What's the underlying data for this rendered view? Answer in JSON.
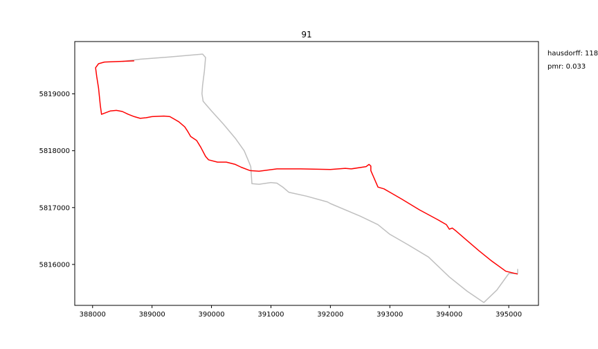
{
  "chart_data": {
    "type": "line",
    "title": "91",
    "xlabel": "",
    "ylabel": "",
    "xlim": [
      387700,
      395500
    ],
    "ylim": [
      5815280,
      5819920
    ],
    "x_ticks": [
      388000,
      389000,
      390000,
      391000,
      392000,
      393000,
      394000,
      395000
    ],
    "y_ticks": [
      5816000,
      5817000,
      5818000,
      5819000
    ],
    "grid": false,
    "annotations": [
      "hausdorff: 118",
      "pmr: 0.033"
    ],
    "colors": {
      "reference": "#bfbfbf",
      "matched": "#ff0000"
    },
    "series": [
      {
        "color": "#bfbfbf",
        "points": [
          [
            388500,
            5819570
          ],
          [
            388800,
            5819610
          ],
          [
            389300,
            5819650
          ],
          [
            389850,
            5819700
          ],
          [
            389900,
            5819640
          ],
          [
            389880,
            5819400
          ],
          [
            389850,
            5819150
          ],
          [
            389840,
            5819000
          ],
          [
            389860,
            5818870
          ],
          [
            390000,
            5818700
          ],
          [
            390200,
            5818470
          ],
          [
            390400,
            5818220
          ],
          [
            390550,
            5818000
          ],
          [
            390630,
            5817800
          ],
          [
            390660,
            5817720
          ],
          [
            390680,
            5817420
          ],
          [
            390800,
            5817410
          ],
          [
            391000,
            5817440
          ],
          [
            391100,
            5817430
          ],
          [
            391200,
            5817360
          ],
          [
            391300,
            5817270
          ],
          [
            391600,
            5817200
          ],
          [
            391950,
            5817100
          ],
          [
            392000,
            5817070
          ],
          [
            392500,
            5816850
          ],
          [
            392800,
            5816700
          ],
          [
            393000,
            5816530
          ],
          [
            393300,
            5816350
          ],
          [
            393650,
            5816130
          ],
          [
            394000,
            5815780
          ],
          [
            394300,
            5815530
          ],
          [
            394580,
            5815330
          ],
          [
            394800,
            5815550
          ],
          [
            395000,
            5815840
          ],
          [
            395150,
            5815840
          ],
          [
            395150,
            5815920
          ]
        ]
      },
      {
        "color": "#ff0000",
        "points": [
          [
            388700,
            5819580
          ],
          [
            388200,
            5819560
          ],
          [
            388100,
            5819530
          ],
          [
            388050,
            5819460
          ],
          [
            388070,
            5819300
          ],
          [
            388100,
            5819100
          ],
          [
            388130,
            5818800
          ],
          [
            388150,
            5818640
          ],
          [
            388300,
            5818700
          ],
          [
            388400,
            5818710
          ],
          [
            388500,
            5818690
          ],
          [
            388600,
            5818640
          ],
          [
            388700,
            5818600
          ],
          [
            388800,
            5818570
          ],
          [
            388900,
            5818580
          ],
          [
            389000,
            5818600
          ],
          [
            389200,
            5818610
          ],
          [
            389300,
            5818600
          ],
          [
            389450,
            5818510
          ],
          [
            389550,
            5818420
          ],
          [
            389600,
            5818340
          ],
          [
            389650,
            5818250
          ],
          [
            389750,
            5818180
          ],
          [
            389820,
            5818060
          ],
          [
            389900,
            5817900
          ],
          [
            389950,
            5817840
          ],
          [
            390100,
            5817800
          ],
          [
            390250,
            5817800
          ],
          [
            390400,
            5817760
          ],
          [
            390500,
            5817710
          ],
          [
            390650,
            5817650
          ],
          [
            390800,
            5817640
          ],
          [
            391100,
            5817680
          ],
          [
            391500,
            5817680
          ],
          [
            392000,
            5817670
          ],
          [
            392250,
            5817690
          ],
          [
            392350,
            5817680
          ],
          [
            392600,
            5817720
          ],
          [
            392650,
            5817760
          ],
          [
            392680,
            5817730
          ],
          [
            392680,
            5817650
          ],
          [
            392800,
            5817360
          ],
          [
            392900,
            5817330
          ],
          [
            393000,
            5817270
          ],
          [
            393200,
            5817150
          ],
          [
            393500,
            5816960
          ],
          [
            393800,
            5816790
          ],
          [
            393950,
            5816700
          ],
          [
            394000,
            5816620
          ],
          [
            394050,
            5816640
          ],
          [
            394100,
            5816600
          ],
          [
            394300,
            5816420
          ],
          [
            394500,
            5816240
          ],
          [
            394700,
            5816070
          ],
          [
            394950,
            5815880
          ],
          [
            395150,
            5815830
          ]
        ]
      }
    ]
  }
}
